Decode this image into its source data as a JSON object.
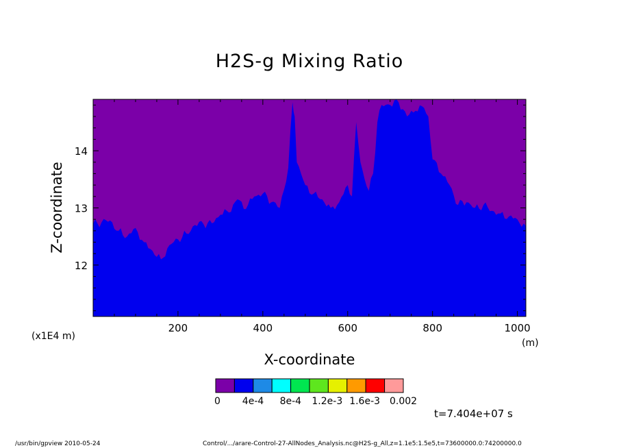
{
  "chart_data": {
    "type": "heatmap",
    "title": "H2S-g Mixing Ratio",
    "xlabel": "X-coordinate",
    "ylabel": "Z-coordinate",
    "x_unit": "(m)",
    "y_unit": "(x1E4 m)",
    "xlim": [
      0,
      1020
    ],
    "ylim": [
      11.1,
      14.9
    ],
    "xticks": [
      200,
      400,
      600,
      800,
      1000
    ],
    "xtick_labels": [
      "200",
      "400",
      "600",
      "800",
      "1000"
    ],
    "yticks": [
      12,
      13,
      14
    ],
    "ytick_labels": [
      "12",
      "13",
      "14"
    ],
    "colorbar": {
      "colors": [
        "#7b00a8",
        "#0000ee",
        "#1e8ae6",
        "#00ffff",
        "#00e650",
        "#5ee61e",
        "#e6f000",
        "#ff9a00",
        "#ff0000",
        "#ff9a9a"
      ],
      "labels": [
        "0",
        "4e-4",
        "8e-4",
        "1.2e-3",
        "1.6e-3",
        "0.002"
      ]
    },
    "boundary": {
      "description_free": true,
      "x": [
        0,
        20,
        40,
        60,
        80,
        100,
        120,
        140,
        160,
        180,
        200,
        220,
        240,
        260,
        280,
        300,
        320,
        340,
        360,
        380,
        400,
        420,
        440,
        460,
        470,
        475,
        480,
        490,
        500,
        520,
        540,
        560,
        580,
        600,
        610,
        620,
        630,
        640,
        650,
        660,
        670,
        680,
        700,
        720,
        740,
        760,
        780,
        790,
        800,
        820,
        840,
        860,
        880,
        900,
        920,
        940,
        960,
        980,
        1000,
        1020
      ],
      "z": [
        12.72,
        12.75,
        12.78,
        12.6,
        12.5,
        12.65,
        12.4,
        12.25,
        12.1,
        12.35,
        12.45,
        12.55,
        12.7,
        12.72,
        12.73,
        12.88,
        12.92,
        13.15,
        12.98,
        13.2,
        13.25,
        13.1,
        13.0,
        13.7,
        14.85,
        14.6,
        13.8,
        13.6,
        13.4,
        13.25,
        13.15,
        13.0,
        13.1,
        13.4,
        13.2,
        14.5,
        13.8,
        13.5,
        13.3,
        13.6,
        14.5,
        14.8,
        14.8,
        14.85,
        14.6,
        14.7,
        14.75,
        14.6,
        13.85,
        13.6,
        13.4,
        13.05,
        13.1,
        13.0,
        13.05,
        12.95,
        12.9,
        12.85,
        12.8,
        12.68
      ]
    }
  },
  "timestamp": "t=7.404e+07 s",
  "footer_left": "/usr/bin/gpview   2010-05-24",
  "footer_right": "Control/.../arare-Control-27-AllNodes_Analysis.nc@H2S-g_All,z=1.1e5:1.5e5,t=73600000.0:74200000.0"
}
